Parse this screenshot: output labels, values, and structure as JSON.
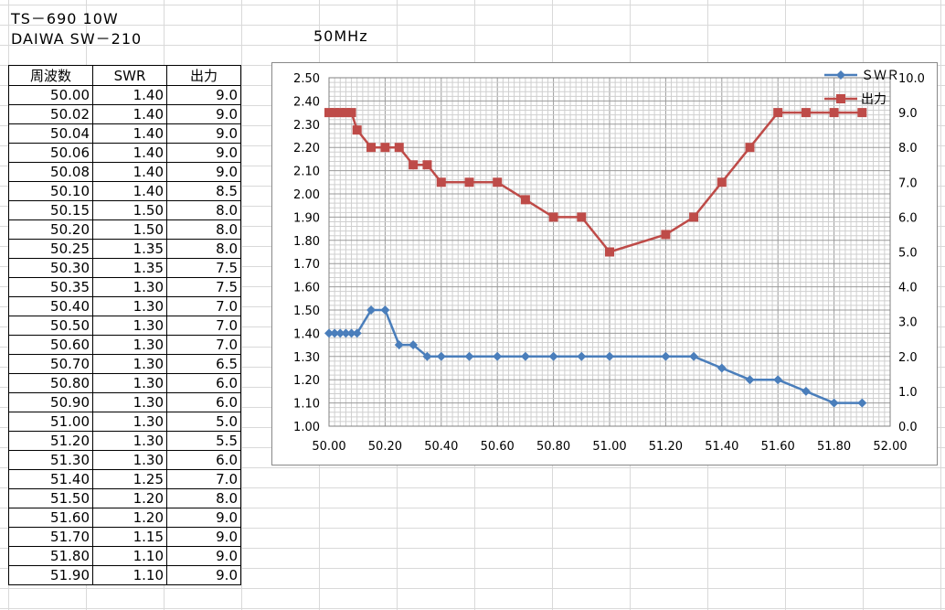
{
  "header": {
    "line1": "TS－690 10W",
    "line2": "DAIWA SW－210",
    "band": "50MHz"
  },
  "table": {
    "columns": [
      "周波数",
      "SWR",
      "出力"
    ],
    "rows": [
      [
        "50.00",
        "1.40",
        "9.0"
      ],
      [
        "50.02",
        "1.40",
        "9.0"
      ],
      [
        "50.04",
        "1.40",
        "9.0"
      ],
      [
        "50.06",
        "1.40",
        "9.0"
      ],
      [
        "50.08",
        "1.40",
        "9.0"
      ],
      [
        "50.10",
        "1.40",
        "8.5"
      ],
      [
        "50.15",
        "1.50",
        "8.0"
      ],
      [
        "50.20",
        "1.50",
        "8.0"
      ],
      [
        "50.25",
        "1.35",
        "8.0"
      ],
      [
        "50.30",
        "1.35",
        "7.5"
      ],
      [
        "50.35",
        "1.30",
        "7.5"
      ],
      [
        "50.40",
        "1.30",
        "7.0"
      ],
      [
        "50.50",
        "1.30",
        "7.0"
      ],
      [
        "50.60",
        "1.30",
        "7.0"
      ],
      [
        "50.70",
        "1.30",
        "6.5"
      ],
      [
        "50.80",
        "1.30",
        "6.0"
      ],
      [
        "50.90",
        "1.30",
        "6.0"
      ],
      [
        "51.00",
        "1.30",
        "5.0"
      ],
      [
        "51.20",
        "1.30",
        "5.5"
      ],
      [
        "51.30",
        "1.30",
        "6.0"
      ],
      [
        "51.40",
        "1.25",
        "7.0"
      ],
      [
        "51.50",
        "1.20",
        "8.0"
      ],
      [
        "51.60",
        "1.20",
        "9.0"
      ],
      [
        "51.70",
        "1.15",
        "9.0"
      ],
      [
        "51.80",
        "1.10",
        "9.0"
      ],
      [
        "51.90",
        "1.10",
        "9.0"
      ]
    ]
  },
  "chart_data": {
    "type": "line",
    "x": [
      50.0,
      50.02,
      50.04,
      50.06,
      50.08,
      50.1,
      50.15,
      50.2,
      50.25,
      50.3,
      50.35,
      50.4,
      50.5,
      50.6,
      50.7,
      50.8,
      50.9,
      51.0,
      51.2,
      51.3,
      51.4,
      51.5,
      51.6,
      51.7,
      51.8,
      51.9
    ],
    "series": [
      {
        "name": "ＳＷＲ",
        "axis": "left",
        "color": "#4a7ebb",
        "marker": "diamond",
        "values": [
          1.4,
          1.4,
          1.4,
          1.4,
          1.4,
          1.4,
          1.5,
          1.5,
          1.35,
          1.35,
          1.3,
          1.3,
          1.3,
          1.3,
          1.3,
          1.3,
          1.3,
          1.3,
          1.3,
          1.3,
          1.25,
          1.2,
          1.2,
          1.15,
          1.1,
          1.1
        ]
      },
      {
        "name": "出力",
        "axis": "right",
        "color": "#be4b48",
        "marker": "square",
        "values": [
          9.0,
          9.0,
          9.0,
          9.0,
          9.0,
          8.5,
          8.0,
          8.0,
          8.0,
          7.5,
          7.5,
          7.0,
          7.0,
          7.0,
          6.5,
          6.0,
          6.0,
          5.0,
          5.5,
          6.0,
          7.0,
          8.0,
          9.0,
          9.0,
          9.0,
          9.0
        ]
      }
    ],
    "xlim": [
      50.0,
      52.0
    ],
    "xticks": [
      "50.00",
      "50.20",
      "50.40",
      "50.60",
      "50.80",
      "51.00",
      "51.20",
      "51.40",
      "51.60",
      "51.80",
      "52.00"
    ],
    "ylim_left": [
      1.0,
      2.5
    ],
    "yticks_left": [
      "1.00",
      "1.10",
      "1.20",
      "1.30",
      "1.40",
      "1.50",
      "1.60",
      "1.70",
      "1.80",
      "1.90",
      "2.00",
      "2.10",
      "2.20",
      "2.30",
      "2.40",
      "2.50"
    ],
    "ylim_right": [
      0.0,
      10.0
    ],
    "yticks_right": [
      "0.0",
      "1.0",
      "2.0",
      "3.0",
      "4.0",
      "5.0",
      "6.0",
      "7.0",
      "8.0",
      "9.0",
      "10.0"
    ],
    "grid": true,
    "legend_placement": "top-right"
  }
}
